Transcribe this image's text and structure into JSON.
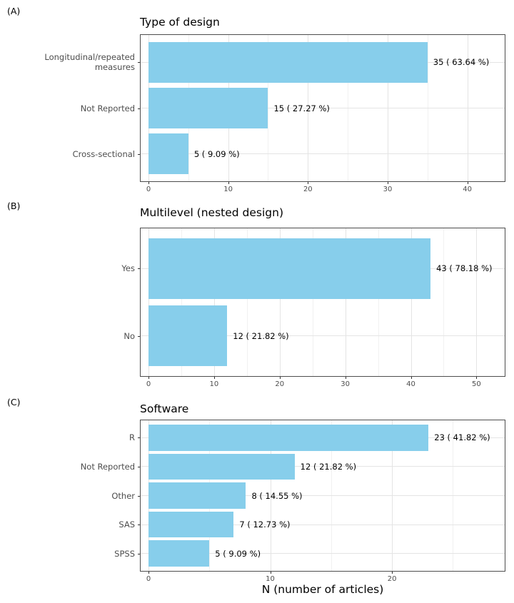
{
  "colors": {
    "bar_fill": "#87CEEB",
    "panel_border": "#4d4d4d",
    "axis_text": "#4d4d4d",
    "value_text": "#000000",
    "grid_major": "#e4e4e4",
    "grid_minor": "#f1f1f1"
  },
  "chart_data": [
    {
      "type": "bar",
      "orientation": "horizontal",
      "panel_label": "(A)",
      "title": "Type of design",
      "categories": [
        "Longitudinal/repeated\nmeasures",
        "Not Reported",
        "Cross-sectional"
      ],
      "values": [
        35,
        15,
        5
      ],
      "value_labels": [
        "35  ( 63.64 %)",
        "15  ( 27.27 %)",
        "5  ( 9.09 %)"
      ],
      "xlabel": "",
      "xlim": [
        0,
        44.6
      ],
      "xticks": [
        0,
        10,
        20,
        30,
        40
      ],
      "xticks_minor": [
        5,
        15,
        25,
        35
      ],
      "grid": "on",
      "legend": "none"
    },
    {
      "type": "bar",
      "orientation": "horizontal",
      "panel_label": "(B)",
      "title": "Multilevel (nested design)",
      "categories": [
        "Yes",
        "No"
      ],
      "values": [
        43,
        12
      ],
      "value_labels": [
        "43  ( 78.18 %)",
        "12  ( 21.82 %)"
      ],
      "xlabel": "",
      "xlim": [
        0,
        54.2
      ],
      "xticks": [
        0,
        10,
        20,
        30,
        40,
        50
      ],
      "xticks_minor": [
        5,
        15,
        25,
        35,
        45
      ],
      "grid": "on",
      "legend": "none"
    },
    {
      "type": "bar",
      "orientation": "horizontal",
      "panel_label": "(C)",
      "title": "Software",
      "categories": [
        "R",
        "Not Reported",
        "Other",
        "SAS",
        "SPSS"
      ],
      "values": [
        23,
        12,
        8,
        7,
        5
      ],
      "value_labels": [
        "23  ( 41.82 %)",
        "12  ( 21.82 %)",
        "8  ( 14.55 %)",
        "7  ( 12.73 %)",
        "5  ( 9.09 %)"
      ],
      "xlabel": "N (number of articles)",
      "xlim": [
        0,
        29.2
      ],
      "xticks": [
        0,
        10,
        20
      ],
      "xticks_minor": [
        5,
        15,
        25
      ],
      "grid": "on",
      "legend": "none"
    }
  ]
}
